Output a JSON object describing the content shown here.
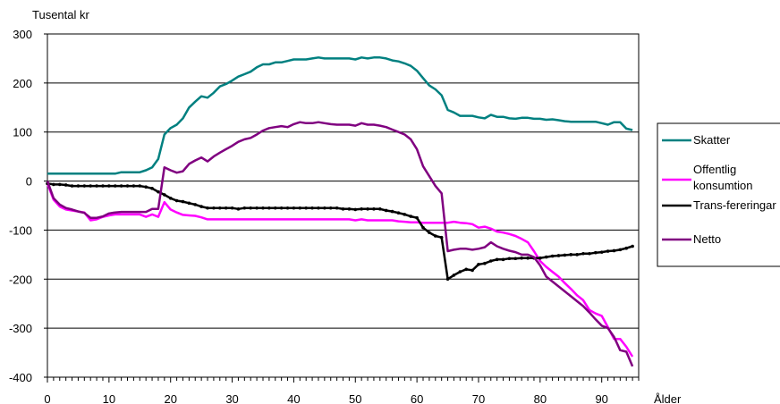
{
  "chart_data": {
    "type": "line",
    "ylabel": "Tusental kr",
    "xlabel": "Ålder",
    "xlim": [
      0,
      96
    ],
    "ylim": [
      -400,
      300
    ],
    "xticks": [
      0,
      10,
      20,
      30,
      40,
      50,
      60,
      70,
      80,
      90
    ],
    "yticks": [
      300,
      200,
      100,
      0,
      -100,
      -200,
      -300,
      -400
    ],
    "grid": "horizontal",
    "legend_position": "right",
    "series": [
      {
        "name": "Skatter",
        "color": "#008080",
        "markers": false,
        "x": [
          0,
          1,
          2,
          3,
          4,
          5,
          6,
          7,
          8,
          9,
          10,
          11,
          12,
          13,
          14,
          15,
          16,
          17,
          18,
          19,
          20,
          21,
          22,
          23,
          24,
          25,
          26,
          27,
          28,
          29,
          30,
          31,
          32,
          33,
          34,
          35,
          36,
          37,
          38,
          39,
          40,
          41,
          42,
          43,
          44,
          45,
          46,
          47,
          48,
          49,
          50,
          51,
          52,
          53,
          54,
          55,
          56,
          57,
          58,
          59,
          60,
          61,
          62,
          63,
          64,
          65,
          66,
          67,
          68,
          69,
          70,
          71,
          72,
          73,
          74,
          75,
          76,
          77,
          78,
          79,
          80,
          81,
          82,
          83,
          84,
          85,
          86,
          87,
          88,
          89,
          90,
          91,
          92,
          93,
          94,
          95
        ],
        "values": [
          15,
          15,
          15,
          15,
          15,
          15,
          15,
          15,
          15,
          15,
          15,
          15,
          18,
          18,
          18,
          18,
          22,
          28,
          45,
          95,
          108,
          115,
          128,
          150,
          162,
          173,
          170,
          180,
          193,
          198,
          205,
          213,
          218,
          223,
          232,
          238,
          238,
          242,
          242,
          245,
          248,
          248,
          248,
          250,
          252,
          250,
          250,
          250,
          250,
          250,
          248,
          252,
          250,
          252,
          252,
          250,
          246,
          244,
          240,
          235,
          225,
          210,
          195,
          187,
          175,
          145,
          140,
          133,
          133,
          133,
          130,
          128,
          135,
          131,
          131,
          128,
          127,
          129,
          129,
          127,
          127,
          125,
          126,
          124,
          122,
          121,
          121,
          121,
          121,
          121,
          118,
          115,
          120,
          120,
          107,
          104
        ]
      },
      {
        "name": "Offentlig konsumtion",
        "color": "#ff00ff",
        "markers": false,
        "x": [
          0,
          1,
          2,
          3,
          4,
          5,
          6,
          7,
          8,
          9,
          10,
          11,
          12,
          13,
          14,
          15,
          16,
          17,
          18,
          19,
          20,
          21,
          22,
          23,
          24,
          25,
          26,
          27,
          28,
          29,
          30,
          31,
          32,
          33,
          34,
          35,
          36,
          37,
          38,
          39,
          40,
          41,
          42,
          43,
          44,
          45,
          46,
          47,
          48,
          49,
          50,
          51,
          52,
          53,
          54,
          55,
          56,
          57,
          58,
          59,
          60,
          61,
          62,
          63,
          64,
          65,
          66,
          67,
          68,
          69,
          70,
          71,
          72,
          73,
          74,
          75,
          76,
          77,
          78,
          79,
          80,
          81,
          82,
          83,
          84,
          85,
          86,
          87,
          88,
          89,
          90,
          91,
          92,
          93,
          94,
          95
        ],
        "values": [
          -5,
          -38,
          -52,
          -58,
          -60,
          -62,
          -64,
          -80,
          -78,
          -73,
          -70,
          -68,
          -68,
          -68,
          -68,
          -68,
          -73,
          -68,
          -73,
          -43,
          -58,
          -64,
          -69,
          -70,
          -71,
          -74,
          -78,
          -78,
          -78,
          -78,
          -78,
          -78,
          -78,
          -78,
          -78,
          -78,
          -78,
          -78,
          -78,
          -78,
          -78,
          -78,
          -78,
          -78,
          -78,
          -78,
          -78,
          -78,
          -78,
          -78,
          -80,
          -78,
          -80,
          -80,
          -80,
          -80,
          -80,
          -82,
          -83,
          -84,
          -84,
          -85,
          -85,
          -85,
          -85,
          -85,
          -83,
          -85,
          -86,
          -88,
          -95,
          -93,
          -97,
          -103,
          -105,
          -108,
          -112,
          -118,
          -125,
          -143,
          -163,
          -175,
          -185,
          -195,
          -208,
          -220,
          -233,
          -243,
          -263,
          -270,
          -275,
          -298,
          -322,
          -322,
          -338,
          -358
        ]
      },
      {
        "name": "Trans-fereringar",
        "color": "#000000",
        "markers": true,
        "x": [
          0,
          1,
          2,
          3,
          4,
          5,
          6,
          7,
          8,
          9,
          10,
          11,
          12,
          13,
          14,
          15,
          16,
          17,
          18,
          19,
          20,
          21,
          22,
          23,
          24,
          25,
          26,
          27,
          28,
          29,
          30,
          31,
          32,
          33,
          34,
          35,
          36,
          37,
          38,
          39,
          40,
          41,
          42,
          43,
          44,
          45,
          46,
          47,
          48,
          49,
          50,
          51,
          52,
          53,
          54,
          55,
          56,
          57,
          58,
          59,
          60,
          61,
          62,
          63,
          64,
          65,
          66,
          67,
          68,
          69,
          70,
          71,
          72,
          73,
          74,
          75,
          76,
          77,
          78,
          79,
          80,
          81,
          82,
          83,
          84,
          85,
          86,
          87,
          88,
          89,
          90,
          91,
          92,
          93,
          94,
          95
        ],
        "values": [
          -5,
          -7,
          -7,
          -8,
          -10,
          -10,
          -10,
          -10,
          -10,
          -10,
          -10,
          -10,
          -10,
          -10,
          -10,
          -10,
          -12,
          -15,
          -22,
          -28,
          -35,
          -40,
          -42,
          -45,
          -48,
          -52,
          -55,
          -55,
          -55,
          -55,
          -55,
          -57,
          -55,
          -55,
          -55,
          -55,
          -55,
          -55,
          -55,
          -55,
          -55,
          -55,
          -55,
          -55,
          -55,
          -55,
          -55,
          -55,
          -57,
          -57,
          -58,
          -57,
          -57,
          -57,
          -57,
          -60,
          -62,
          -65,
          -68,
          -72,
          -75,
          -95,
          -105,
          -112,
          -115,
          -200,
          -192,
          -185,
          -180,
          -182,
          -170,
          -168,
          -163,
          -160,
          -160,
          -158,
          -158,
          -157,
          -157,
          -157,
          -157,
          -155,
          -153,
          -152,
          -151,
          -150,
          -150,
          -148,
          -148,
          -146,
          -145,
          -143,
          -142,
          -140,
          -137,
          -133
        ]
      },
      {
        "name": "Netto",
        "color": "#800080",
        "markers": false,
        "x": [
          0,
          1,
          2,
          3,
          4,
          5,
          6,
          7,
          8,
          9,
          10,
          11,
          12,
          13,
          14,
          15,
          16,
          17,
          18,
          19,
          20,
          21,
          22,
          23,
          24,
          25,
          26,
          27,
          28,
          29,
          30,
          31,
          32,
          33,
          34,
          35,
          36,
          37,
          38,
          39,
          40,
          41,
          42,
          43,
          44,
          45,
          46,
          47,
          48,
          49,
          50,
          51,
          52,
          53,
          54,
          55,
          56,
          57,
          58,
          59,
          60,
          61,
          62,
          63,
          64,
          65,
          66,
          67,
          68,
          69,
          70,
          71,
          72,
          73,
          74,
          75,
          76,
          77,
          78,
          79,
          80,
          81,
          82,
          83,
          84,
          85,
          86,
          87,
          88,
          89,
          90,
          91,
          92,
          93,
          94,
          95
        ],
        "values": [
          0,
          -35,
          -48,
          -55,
          -58,
          -62,
          -65,
          -75,
          -75,
          -72,
          -66,
          -64,
          -63,
          -63,
          -63,
          -63,
          -63,
          -57,
          -57,
          28,
          22,
          17,
          20,
          35,
          42,
          48,
          40,
          50,
          58,
          65,
          72,
          80,
          85,
          88,
          95,
          103,
          108,
          110,
          112,
          110,
          116,
          120,
          118,
          118,
          120,
          118,
          116,
          115,
          115,
          115,
          113,
          118,
          115,
          115,
          113,
          110,
          105,
          100,
          95,
          85,
          65,
          30,
          10,
          -10,
          -25,
          -143,
          -140,
          -138,
          -138,
          -140,
          -138,
          -135,
          -125,
          -133,
          -138,
          -142,
          -145,
          -150,
          -150,
          -155,
          -172,
          -195,
          -205,
          -215,
          -225,
          -235,
          -245,
          -255,
          -268,
          -282,
          -295,
          -300,
          -318,
          -345,
          -348,
          -378
        ]
      }
    ]
  }
}
